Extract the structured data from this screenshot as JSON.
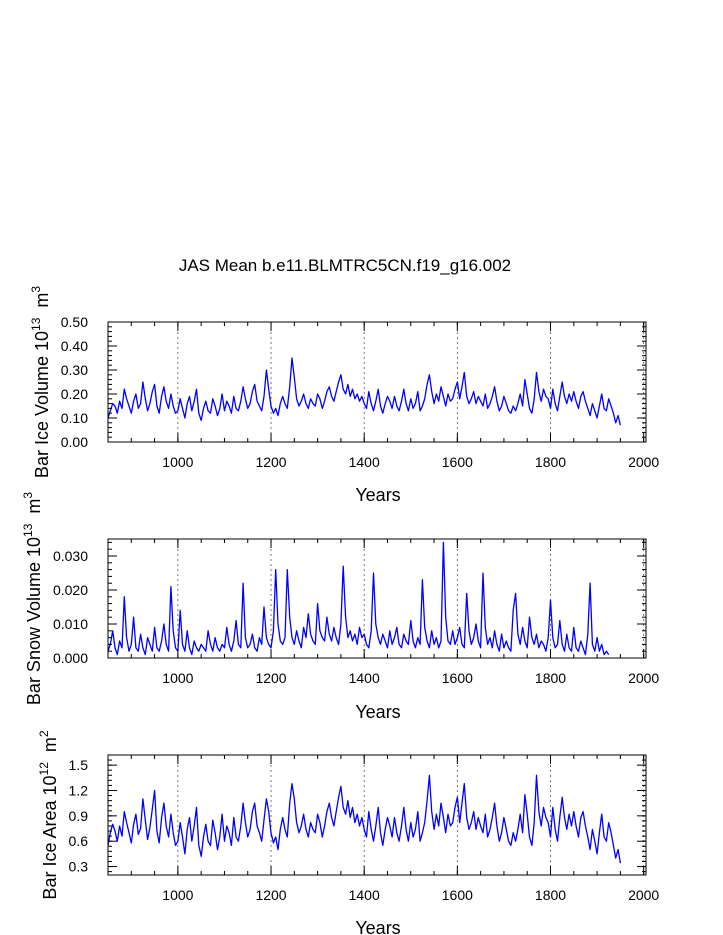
{
  "title": "JAS Mean b.e11.BLMTRC5CN.f19_g16.002",
  "colors": {
    "line": "#0000ff",
    "axis": "#000000",
    "gridline": "#555555"
  },
  "chart_data": [
    {
      "type": "line",
      "name": "ice-volume",
      "ylabel_main": "Bar Ice Volume 10",
      "ylabel_exp": "13",
      "ylabel_unit": "m",
      "ylabel_unit_exp": "3",
      "xlabel": "Years",
      "xlim": [
        850,
        2005
      ],
      "ylim": [
        0,
        0.5
      ],
      "xticks": [
        1000,
        1200,
        1400,
        1600,
        1800,
        2000
      ],
      "yticks": [
        0,
        0.1,
        0.2,
        0.3,
        0.4,
        0.5
      ],
      "ytick_labels": [
        "0.00",
        "0.10",
        "0.20",
        "0.30",
        "0.40",
        "0.50"
      ],
      "series": {
        "name": "JAS mean ice volume",
        "x_start": 850,
        "x_step": 5,
        "values": [
          0.1,
          0.13,
          0.16,
          0.15,
          0.12,
          0.17,
          0.14,
          0.22,
          0.18,
          0.15,
          0.12,
          0.17,
          0.2,
          0.14,
          0.16,
          0.25,
          0.18,
          0.13,
          0.16,
          0.21,
          0.24,
          0.15,
          0.12,
          0.19,
          0.23,
          0.17,
          0.14,
          0.2,
          0.15,
          0.12,
          0.13,
          0.18,
          0.14,
          0.1,
          0.16,
          0.19,
          0.13,
          0.17,
          0.22,
          0.12,
          0.09,
          0.14,
          0.17,
          0.13,
          0.12,
          0.18,
          0.15,
          0.11,
          0.14,
          0.2,
          0.13,
          0.17,
          0.15,
          0.12,
          0.19,
          0.14,
          0.13,
          0.17,
          0.23,
          0.18,
          0.14,
          0.16,
          0.21,
          0.24,
          0.17,
          0.15,
          0.13,
          0.19,
          0.3,
          0.22,
          0.15,
          0.12,
          0.14,
          0.11,
          0.16,
          0.19,
          0.16,
          0.14,
          0.23,
          0.35,
          0.27,
          0.18,
          0.15,
          0.17,
          0.2,
          0.16,
          0.14,
          0.18,
          0.16,
          0.15,
          0.2,
          0.18,
          0.14,
          0.17,
          0.21,
          0.23,
          0.19,
          0.17,
          0.21,
          0.25,
          0.28,
          0.22,
          0.2,
          0.24,
          0.19,
          0.22,
          0.18,
          0.2,
          0.17,
          0.19,
          0.16,
          0.14,
          0.21,
          0.16,
          0.13,
          0.17,
          0.22,
          0.15,
          0.12,
          0.16,
          0.19,
          0.17,
          0.14,
          0.19,
          0.15,
          0.13,
          0.17,
          0.22,
          0.16,
          0.13,
          0.18,
          0.14,
          0.16,
          0.21,
          0.13,
          0.15,
          0.18,
          0.24,
          0.28,
          0.21,
          0.16,
          0.2,
          0.17,
          0.23,
          0.19,
          0.15,
          0.2,
          0.17,
          0.18,
          0.22,
          0.25,
          0.18,
          0.23,
          0.29,
          0.19,
          0.16,
          0.18,
          0.21,
          0.16,
          0.19,
          0.17,
          0.15,
          0.2,
          0.14,
          0.16,
          0.19,
          0.23,
          0.17,
          0.13,
          0.15,
          0.19,
          0.16,
          0.13,
          0.12,
          0.15,
          0.13,
          0.16,
          0.2,
          0.15,
          0.26,
          0.2,
          0.14,
          0.12,
          0.18,
          0.29,
          0.21,
          0.17,
          0.22,
          0.19,
          0.18,
          0.14,
          0.22,
          0.16,
          0.13,
          0.19,
          0.25,
          0.19,
          0.16,
          0.2,
          0.17,
          0.21,
          0.17,
          0.14,
          0.19,
          0.21,
          0.17,
          0.14,
          0.11,
          0.16,
          0.13,
          0.1,
          0.15,
          0.2,
          0.14,
          0.13,
          0.18,
          0.15,
          0.12,
          0.08,
          0.11,
          0.07
        ]
      }
    },
    {
      "type": "line",
      "name": "snow-volume",
      "ylabel_main": "Bar Snow Volume 10",
      "ylabel_exp": "13",
      "ylabel_unit": "m",
      "ylabel_unit_exp": "3",
      "xlabel": "Years",
      "xlim": [
        850,
        2005
      ],
      "ylim": [
        0,
        0.035
      ],
      "xticks": [
        1000,
        1200,
        1400,
        1600,
        1800,
        2000
      ],
      "yticks": [
        0,
        0.01,
        0.02,
        0.03
      ],
      "ytick_labels": [
        "0.000",
        "0.010",
        "0.020",
        "0.030"
      ],
      "series": {
        "name": "JAS mean snow volume",
        "x_start": 850,
        "x_step": 5,
        "values": [
          0.002,
          0.004,
          0.008,
          0.003,
          0.001,
          0.005,
          0.003,
          0.018,
          0.006,
          0.002,
          0.004,
          0.012,
          0.003,
          0.002,
          0.007,
          0.003,
          0.001,
          0.006,
          0.004,
          0.002,
          0.009,
          0.003,
          0.002,
          0.005,
          0.01,
          0.004,
          0.002,
          0.021,
          0.008,
          0.003,
          0.002,
          0.014,
          0.004,
          0.002,
          0.008,
          0.003,
          0.001,
          0.005,
          0.003,
          0.002,
          0.004,
          0.003,
          0.002,
          0.008,
          0.004,
          0.002,
          0.006,
          0.003,
          0.002,
          0.004,
          0.003,
          0.009,
          0.004,
          0.002,
          0.005,
          0.011,
          0.004,
          0.003,
          0.022,
          0.006,
          0.003,
          0.004,
          0.007,
          0.003,
          0.002,
          0.006,
          0.004,
          0.015,
          0.006,
          0.004,
          0.003,
          0.008,
          0.026,
          0.01,
          0.005,
          0.004,
          0.006,
          0.026,
          0.012,
          0.006,
          0.004,
          0.008,
          0.005,
          0.003,
          0.009,
          0.006,
          0.013,
          0.007,
          0.005,
          0.004,
          0.016,
          0.008,
          0.006,
          0.005,
          0.012,
          0.007,
          0.005,
          0.009,
          0.006,
          0.004,
          0.01,
          0.027,
          0.012,
          0.006,
          0.008,
          0.005,
          0.007,
          0.004,
          0.009,
          0.006,
          0.007,
          0.004,
          0.003,
          0.008,
          0.025,
          0.01,
          0.006,
          0.004,
          0.007,
          0.005,
          0.003,
          0.008,
          0.004,
          0.006,
          0.009,
          0.004,
          0.003,
          0.007,
          0.005,
          0.004,
          0.011,
          0.005,
          0.003,
          0.006,
          0.004,
          0.023,
          0.009,
          0.005,
          0.003,
          0.008,
          0.004,
          0.006,
          0.003,
          0.005,
          0.034,
          0.012,
          0.005,
          0.004,
          0.008,
          0.004,
          0.006,
          0.009,
          0.004,
          0.003,
          0.019,
          0.008,
          0.004,
          0.006,
          0.01,
          0.005,
          0.003,
          0.025,
          0.009,
          0.004,
          0.006,
          0.003,
          0.008,
          0.004,
          0.002,
          0.007,
          0.003,
          0.005,
          0.003,
          0.002,
          0.014,
          0.019,
          0.007,
          0.004,
          0.009,
          0.005,
          0.003,
          0.012,
          0.006,
          0.004,
          0.007,
          0.003,
          0.005,
          0.004,
          0.002,
          0.006,
          0.017,
          0.006,
          0.003,
          0.004,
          0.011,
          0.004,
          0.002,
          0.007,
          0.003,
          0.002,
          0.009,
          0.003,
          0.002,
          0.005,
          0.003,
          0.001,
          0.007,
          0.022,
          0.004,
          0.002,
          0.006,
          0.002,
          0.004,
          0.001,
          0.002,
          0.001
        ]
      }
    },
    {
      "type": "line",
      "name": "ice-area",
      "ylabel_main": "Bar Ice Area 10",
      "ylabel_exp": "12",
      "ylabel_unit": "m",
      "ylabel_unit_exp": "2",
      "xlabel": "Years",
      "xlim": [
        850,
        2005
      ],
      "ylim": [
        0.2,
        1.62
      ],
      "xticks": [
        1000,
        1200,
        1400,
        1600,
        1800,
        2000
      ],
      "yticks": [
        0.3,
        0.6,
        0.9,
        1.2,
        1.5
      ],
      "ytick_labels": [
        "0.3",
        "0.6",
        "0.9",
        "1.2",
        "1.5"
      ],
      "series": {
        "name": "JAS mean ice area",
        "x_start": 850,
        "x_step": 5,
        "values": [
          0.55,
          0.7,
          0.8,
          0.72,
          0.6,
          0.78,
          0.66,
          0.95,
          0.82,
          0.7,
          0.58,
          0.8,
          0.92,
          0.68,
          0.75,
          1.1,
          0.85,
          0.62,
          0.76,
          0.98,
          1.2,
          0.72,
          0.58,
          0.88,
          1.05,
          0.78,
          0.65,
          0.92,
          0.7,
          0.55,
          0.6,
          0.82,
          0.65,
          0.45,
          0.74,
          0.88,
          0.6,
          0.78,
          1.0,
          0.55,
          0.42,
          0.65,
          0.8,
          0.6,
          0.55,
          0.85,
          0.7,
          0.5,
          0.65,
          0.92,
          0.6,
          0.78,
          0.7,
          0.55,
          0.88,
          0.65,
          0.6,
          0.78,
          1.05,
          0.82,
          0.65,
          0.74,
          0.95,
          1.05,
          0.78,
          0.7,
          0.6,
          0.85,
          1.1,
          0.95,
          0.7,
          0.58,
          0.65,
          0.5,
          0.74,
          0.88,
          0.74,
          0.65,
          1.05,
          1.28,
          1.1,
          0.82,
          0.7,
          0.78,
          0.92,
          0.74,
          0.65,
          0.82,
          0.74,
          0.7,
          0.92,
          0.82,
          0.65,
          0.78,
          0.95,
          1.05,
          0.88,
          0.78,
          0.95,
          1.12,
          1.25,
          1.0,
          0.92,
          1.08,
          0.88,
          1.0,
          0.82,
          0.92,
          0.78,
          0.88,
          0.74,
          0.65,
          0.95,
          0.74,
          0.6,
          0.78,
          1.0,
          0.7,
          0.55,
          0.74,
          0.88,
          0.78,
          0.65,
          0.88,
          0.7,
          0.6,
          0.78,
          1.0,
          0.74,
          0.6,
          0.82,
          0.65,
          0.74,
          0.95,
          0.6,
          0.7,
          0.82,
          1.08,
          1.38,
          0.95,
          0.74,
          0.92,
          0.78,
          1.05,
          0.88,
          0.7,
          0.92,
          0.78,
          0.82,
          1.0,
          1.12,
          0.82,
          1.05,
          1.28,
          0.88,
          0.74,
          0.82,
          0.95,
          0.74,
          0.88,
          0.78,
          0.7,
          0.92,
          0.65,
          0.74,
          0.88,
          1.05,
          0.78,
          0.6,
          0.7,
          0.88,
          0.74,
          0.6,
          0.55,
          0.7,
          0.6,
          0.74,
          0.92,
          0.7,
          1.15,
          0.92,
          0.65,
          0.55,
          0.82,
          1.38,
          0.95,
          0.78,
          1.0,
          0.88,
          0.82,
          0.65,
          1.0,
          0.74,
          0.6,
          0.88,
          1.12,
          0.88,
          0.74,
          0.92,
          0.78,
          0.95,
          0.78,
          0.65,
          0.88,
          0.95,
          0.78,
          0.65,
          0.5,
          0.74,
          0.6,
          0.45,
          0.7,
          0.92,
          0.65,
          0.6,
          0.82,
          0.7,
          0.55,
          0.4,
          0.5,
          0.34
        ]
      }
    }
  ]
}
